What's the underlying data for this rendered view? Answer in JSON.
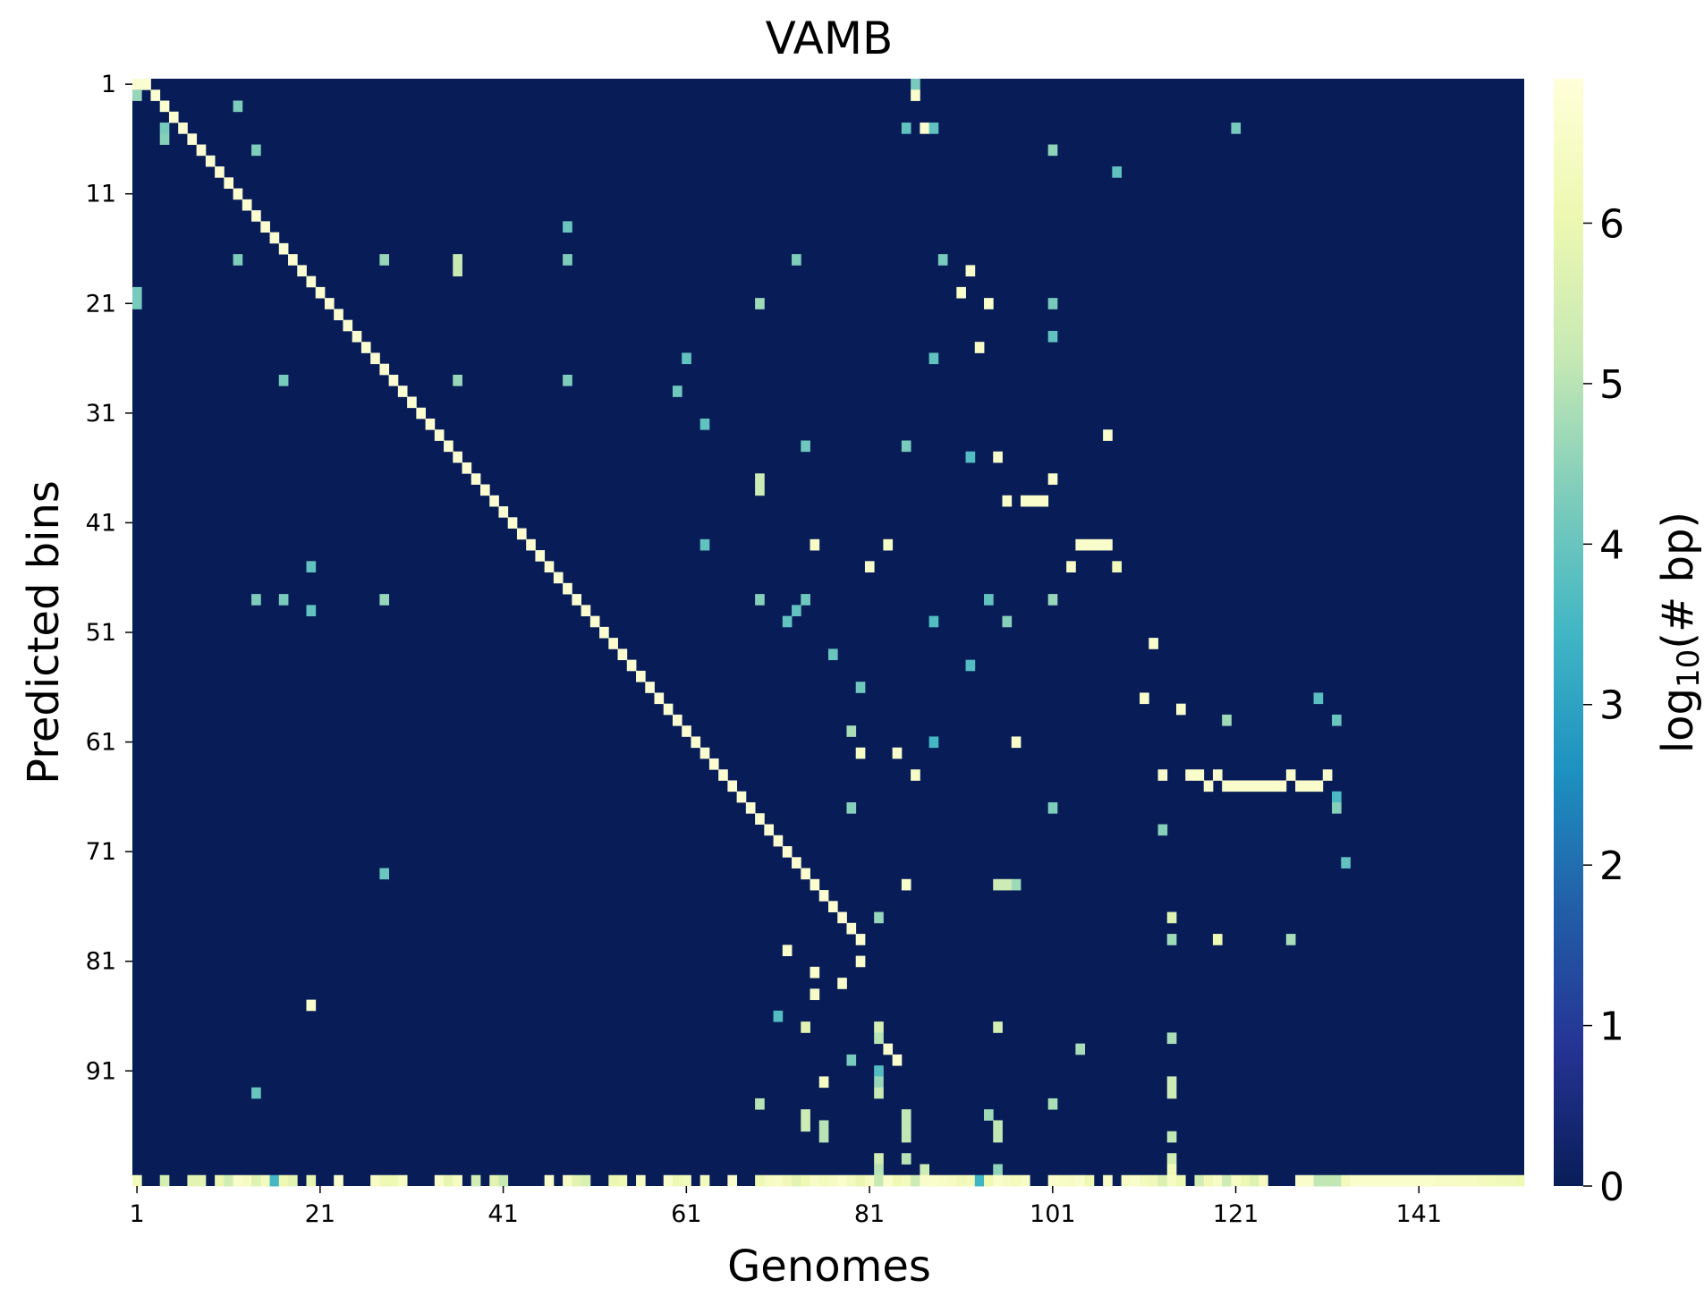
{
  "chart_data": {
    "type": "heatmap",
    "title": "VAMB",
    "xlabel": "Genomes",
    "ylabel": "Predicted bins",
    "colorbar": {
      "label_main": "log",
      "label_sub": "10",
      "label_rest": "(# bp)",
      "range": [
        0,
        6.9
      ],
      "ticks": [
        "0",
        "1",
        "2",
        "3",
        "4",
        "5",
        "6"
      ],
      "colormap": "YlGnBu_r"
    },
    "n_cols": 152,
    "n_rows": 101,
    "x_ticks": [
      "1",
      "21",
      "41",
      "61",
      "81",
      "101",
      "121",
      "141"
    ],
    "y_ticks": [
      "1",
      "11",
      "21",
      "31",
      "41",
      "51",
      "61",
      "71",
      "81",
      "91"
    ],
    "background_value": 0,
    "cells": [
      [
        1,
        1,
        6.7
      ],
      [
        2,
        1,
        6.7
      ],
      [
        3,
        2,
        6.7
      ],
      [
        4,
        3,
        6.7
      ],
      [
        4,
        5,
        4.2
      ],
      [
        4,
        6,
        4.4
      ],
      [
        5,
        4,
        6.7
      ],
      [
        6,
        5,
        6.7
      ],
      [
        7,
        6,
        6.7
      ],
      [
        8,
        7,
        6.7
      ],
      [
        9,
        8,
        6.7
      ],
      [
        10,
        9,
        6.7
      ],
      [
        11,
        10,
        6.7
      ],
      [
        12,
        11,
        6.7
      ],
      [
        13,
        12,
        6.7
      ],
      [
        14,
        13,
        6.7
      ],
      [
        15,
        14,
        6.7
      ],
      [
        16,
        15,
        6.7
      ],
      [
        17,
        16,
        6.7
      ],
      [
        18,
        17,
        6.7
      ],
      [
        19,
        18,
        6.7
      ],
      [
        20,
        19,
        6.7
      ],
      [
        21,
        20,
        6.7
      ],
      [
        22,
        21,
        6.7
      ],
      [
        23,
        22,
        6.7
      ],
      [
        24,
        23,
        6.7
      ],
      [
        25,
        24,
        6.7
      ],
      [
        26,
        25,
        6.7
      ],
      [
        27,
        26,
        6.7
      ],
      [
        28,
        27,
        6.7
      ],
      [
        29,
        28,
        6.7
      ],
      [
        30,
        29,
        6.7
      ],
      [
        31,
        30,
        6.7
      ],
      [
        32,
        31,
        6.7
      ],
      [
        33,
        32,
        6.7
      ],
      [
        34,
        33,
        6.7
      ],
      [
        35,
        34,
        6.7
      ],
      [
        36,
        35,
        6.7
      ],
      [
        37,
        36,
        6.7
      ],
      [
        38,
        37,
        6.7
      ],
      [
        39,
        38,
        6.7
      ],
      [
        40,
        39,
        6.7
      ],
      [
        41,
        40,
        6.7
      ],
      [
        42,
        41,
        6.7
      ],
      [
        43,
        42,
        6.7
      ],
      [
        44,
        43,
        6.7
      ],
      [
        45,
        44,
        6.7
      ],
      [
        46,
        45,
        6.7
      ],
      [
        47,
        46,
        6.7
      ],
      [
        48,
        47,
        6.7
      ],
      [
        49,
        48,
        6.7
      ],
      [
        50,
        49,
        6.7
      ],
      [
        51,
        50,
        6.7
      ],
      [
        52,
        51,
        6.7
      ],
      [
        53,
        52,
        6.7
      ],
      [
        54,
        53,
        6.7
      ],
      [
        55,
        54,
        6.7
      ],
      [
        56,
        55,
        6.7
      ],
      [
        57,
        56,
        6.7
      ],
      [
        58,
        57,
        6.7
      ],
      [
        59,
        58,
        6.7
      ],
      [
        60,
        59,
        6.7
      ],
      [
        61,
        60,
        6.7
      ],
      [
        62,
        61,
        6.7
      ],
      [
        63,
        62,
        6.7
      ],
      [
        64,
        63,
        6.7
      ],
      [
        65,
        64,
        6.7
      ],
      [
        66,
        65,
        6.7
      ],
      [
        67,
        66,
        6.7
      ],
      [
        68,
        67,
        6.7
      ],
      [
        69,
        68,
        6.7
      ],
      [
        70,
        69,
        6.7
      ],
      [
        71,
        70,
        6.7
      ],
      [
        72,
        71,
        6.7
      ],
      [
        73,
        72,
        6.7
      ],
      [
        74,
        73,
        6.7
      ],
      [
        75,
        74,
        6.7
      ],
      [
        76,
        75,
        6.7
      ],
      [
        77,
        76,
        6.7
      ],
      [
        78,
        77,
        6.7
      ],
      [
        79,
        78,
        6.7
      ],
      [
        80,
        79,
        6.7
      ],
      [
        1,
        2,
        4.6
      ],
      [
        1,
        20,
        4.2
      ],
      [
        1,
        21,
        4.2
      ],
      [
        12,
        3,
        4.3
      ],
      [
        14,
        7,
        4.3
      ],
      [
        12,
        17,
        4.3
      ],
      [
        17,
        28,
        4.2
      ],
      [
        20,
        45,
        3.9
      ],
      [
        20,
        49,
        3.9
      ],
      [
        14,
        48,
        4.3
      ],
      [
        17,
        48,
        4.2
      ],
      [
        28,
        17,
        4.6
      ],
      [
        28,
        48,
        4.6
      ],
      [
        28,
        73,
        4.0
      ],
      [
        36,
        17,
        5.2
      ],
      [
        36,
        18,
        5.2
      ],
      [
        36,
        28,
        4.6
      ],
      [
        48,
        14,
        4.0
      ],
      [
        48,
        17,
        4.3
      ],
      [
        48,
        28,
        4.3
      ],
      [
        20,
        85,
        6.6
      ],
      [
        14,
        93,
        4.0
      ],
      [
        61,
        26,
        3.9
      ],
      [
        60,
        29,
        4.1
      ],
      [
        63,
        32,
        3.9
      ],
      [
        63,
        43,
        3.9
      ],
      [
        69,
        21,
        4.7
      ],
      [
        69,
        37,
        5.3
      ],
      [
        69,
        38,
        5.3
      ],
      [
        69,
        48,
        4.4
      ],
      [
        69,
        94,
        5.0
      ],
      [
        73,
        17,
        4.3
      ],
      [
        74,
        34,
        4.1
      ],
      [
        75,
        43,
        6.5
      ],
      [
        72,
        50,
        3.9
      ],
      [
        73,
        49,
        3.9
      ],
      [
        74,
        48,
        4.1
      ],
      [
        77,
        53,
        4.0
      ],
      [
        80,
        56,
        4.1
      ],
      [
        79,
        60,
        4.8
      ],
      [
        80,
        62,
        6.5
      ],
      [
        79,
        67,
        4.4
      ],
      [
        81,
        45,
        6.6
      ],
      [
        83,
        43,
        6.5
      ],
      [
        86,
        1,
        4.2
      ],
      [
        86,
        2,
        6.6
      ],
      [
        85,
        5,
        3.9
      ],
      [
        87,
        5,
        6.7
      ],
      [
        88,
        5,
        3.9
      ],
      [
        89,
        17,
        4.2
      ],
      [
        88,
        26,
        3.9
      ],
      [
        85,
        34,
        4.2
      ],
      [
        88,
        50,
        3.7
      ],
      [
        88,
        61,
        3.5
      ],
      [
        84,
        62,
        6.6
      ],
      [
        86,
        64,
        6.5
      ],
      [
        85,
        74,
        6.6
      ],
      [
        82,
        77,
        4.6
      ],
      [
        72,
        80,
        6.6
      ],
      [
        80,
        81,
        6.6
      ],
      [
        75,
        82,
        6.6
      ],
      [
        78,
        83,
        6.6
      ],
      [
        75,
        84,
        6.5
      ],
      [
        71,
        86,
        3.7
      ],
      [
        74,
        87,
        5.8
      ],
      [
        82,
        87,
        5.5
      ],
      [
        82,
        88,
        5.0
      ],
      [
        83,
        89,
        6.6
      ],
      [
        84,
        90,
        6.6
      ],
      [
        79,
        90,
        4.2
      ],
      [
        82,
        91,
        3.7
      ],
      [
        76,
        92,
        6.4
      ],
      [
        82,
        92,
        4.6
      ],
      [
        82,
        93,
        5.2
      ],
      [
        92,
        18,
        6.6
      ],
      [
        91,
        20,
        6.6
      ],
      [
        94,
        21,
        6.6
      ],
      [
        93,
        25,
        6.5
      ],
      [
        92,
        35,
        3.7
      ],
      [
        95,
        35,
        6.6
      ],
      [
        96,
        39,
        6.6
      ],
      [
        98,
        39,
        6.6
      ],
      [
        99,
        39,
        6.6
      ],
      [
        100,
        39,
        6.6
      ],
      [
        94,
        48,
        3.9
      ],
      [
        96,
        50,
        4.4
      ],
      [
        92,
        54,
        3.7
      ],
      [
        97,
        61,
        6.6
      ],
      [
        95,
        74,
        5.3
      ],
      [
        96,
        74,
        5.3
      ],
      [
        97,
        74,
        4.7
      ],
      [
        95,
        87,
        5.5
      ],
      [
        94,
        95,
        4.7
      ],
      [
        95,
        96,
        5.1
      ],
      [
        95,
        97,
        5.1
      ],
      [
        95,
        100,
        4.5
      ],
      [
        101,
        7,
        4.5
      ],
      [
        108,
        9,
        3.9
      ],
      [
        101,
        21,
        4.2
      ],
      [
        101,
        24,
        3.9
      ],
      [
        107,
        33,
        6.6
      ],
      [
        101,
        37,
        6.6
      ],
      [
        104,
        43,
        6.6
      ],
      [
        105,
        43,
        6.6
      ],
      [
        106,
        43,
        6.6
      ],
      [
        107,
        43,
        6.6
      ],
      [
        103,
        45,
        6.5
      ],
      [
        108,
        45,
        6.2
      ],
      [
        101,
        48,
        4.6
      ],
      [
        101,
        67,
        4.3
      ],
      [
        104,
        89,
        4.8
      ],
      [
        101,
        94,
        4.8
      ],
      [
        112,
        52,
        6.6
      ],
      [
        111,
        57,
        6.6
      ],
      [
        115,
        58,
        6.6
      ],
      [
        113,
        64,
        6.6
      ],
      [
        116,
        64,
        6.6
      ],
      [
        117,
        64,
        6.6
      ],
      [
        118,
        65,
        6.6
      ],
      [
        119,
        64,
        6.6
      ],
      [
        120,
        65,
        6.6
      ],
      [
        113,
        69,
        4.4
      ],
      [
        114,
        77,
        5.7
      ],
      [
        114,
        79,
        4.7
      ],
      [
        114,
        88,
        4.8
      ],
      [
        114,
        92,
        5.3
      ],
      [
        114,
        93,
        5.3
      ],
      [
        114,
        97,
        5.1
      ],
      [
        114,
        99,
        5.4
      ],
      [
        119,
        79,
        6.1
      ],
      [
        120,
        59,
        4.7
      ],
      [
        121,
        5,
        4.2
      ],
      [
        121,
        65,
        6.6
      ],
      [
        122,
        65,
        6.6
      ],
      [
        123,
        65,
        6.6
      ],
      [
        124,
        65,
        6.6
      ],
      [
        125,
        65,
        6.6
      ],
      [
        126,
        65,
        6.6
      ],
      [
        127,
        64,
        6.6
      ],
      [
        128,
        65,
        6.6
      ],
      [
        129,
        65,
        6.6
      ],
      [
        130,
        65,
        6.6
      ],
      [
        131,
        64,
        6.6
      ],
      [
        127,
        79,
        4.8
      ],
      [
        130,
        57,
        3.8
      ],
      [
        132,
        59,
        4.0
      ],
      [
        132,
        66,
        3.6
      ],
      [
        132,
        67,
        4.4
      ],
      [
        133,
        72,
        3.9
      ],
      [
        114,
        100,
        6.2
      ],
      [
        76,
        97,
        5.0
      ],
      [
        76,
        96,
        5.0
      ],
      [
        74,
        96,
        5.3
      ],
      [
        74,
        95,
        5.3
      ],
      [
        85,
        95,
        5.1
      ],
      [
        85,
        96,
        5.1
      ],
      [
        85,
        97,
        5.1
      ],
      [
        82,
        99,
        5.4
      ],
      [
        85,
        99,
        5.0
      ],
      [
        87,
        100,
        5.3
      ],
      [
        82,
        100,
        5.0
      ],
      [
        1,
        101,
        6.3
      ],
      [
        4,
        101,
        5.5
      ],
      [
        7,
        101,
        5.8
      ],
      [
        8,
        101,
        5.8
      ],
      [
        10,
        101,
        6.0
      ],
      [
        11,
        101,
        5.4
      ],
      [
        12,
        101,
        6.6
      ],
      [
        13,
        101,
        6.4
      ],
      [
        14,
        101,
        5.7
      ],
      [
        15,
        101,
        6.3
      ],
      [
        16,
        101,
        3.5
      ],
      [
        17,
        101,
        6.1
      ],
      [
        18,
        101,
        5.8
      ],
      [
        20,
        101,
        5.9
      ],
      [
        23,
        101,
        6.6
      ],
      [
        27,
        101,
        6.5
      ],
      [
        28,
        101,
        6.1
      ],
      [
        29,
        101,
        6.1
      ],
      [
        30,
        101,
        6.4
      ],
      [
        34,
        101,
        6.6
      ],
      [
        35,
        101,
        5.9
      ],
      [
        36,
        101,
        6.4
      ],
      [
        38,
        101,
        5.4
      ],
      [
        40,
        101,
        5.8
      ],
      [
        41,
        101,
        5.2
      ],
      [
        46,
        101,
        6.6
      ],
      [
        48,
        101,
        6.5
      ],
      [
        49,
        101,
        5.8
      ],
      [
        50,
        101,
        5.6
      ],
      [
        53,
        101,
        6.0
      ],
      [
        54,
        101,
        6.1
      ],
      [
        56,
        101,
        6.4
      ],
      [
        59,
        101,
        6.6
      ],
      [
        60,
        101,
        6.1
      ],
      [
        61,
        101,
        6.3
      ],
      [
        63,
        101,
        6.3
      ],
      [
        66,
        101,
        6.6
      ],
      [
        69,
        101,
        6.1
      ],
      [
        70,
        101,
        6.4
      ],
      [
        71,
        101,
        6.5
      ],
      [
        72,
        101,
        6.2
      ],
      [
        73,
        101,
        5.8
      ],
      [
        74,
        101,
        6.1
      ],
      [
        75,
        101,
        6.5
      ],
      [
        76,
        101,
        6.3
      ],
      [
        77,
        101,
        6.4
      ],
      [
        78,
        101,
        6.6
      ],
      [
        79,
        101,
        6.3
      ],
      [
        80,
        101,
        6.0
      ],
      [
        81,
        101,
        6.4
      ],
      [
        82,
        101,
        5.2
      ],
      [
        83,
        101,
        6.6
      ],
      [
        84,
        101,
        6.1
      ],
      [
        85,
        101,
        6.3
      ],
      [
        86,
        101,
        5.3
      ],
      [
        87,
        101,
        6.6
      ],
      [
        88,
        101,
        6.6
      ],
      [
        89,
        101,
        6.5
      ],
      [
        90,
        101,
        6.4
      ],
      [
        91,
        101,
        6.2
      ],
      [
        92,
        101,
        6.3
      ],
      [
        93,
        101,
        3.4
      ],
      [
        94,
        101,
        6.1
      ],
      [
        95,
        101,
        6.6
      ],
      [
        96,
        101,
        6.4
      ],
      [
        97,
        101,
        6.3
      ],
      [
        98,
        101,
        6.5
      ],
      [
        101,
        101,
        6.6
      ],
      [
        102,
        101,
        6.5
      ],
      [
        103,
        101,
        6.4
      ],
      [
        104,
        101,
        6.6
      ],
      [
        105,
        101,
        6.1
      ],
      [
        107,
        101,
        6.5
      ],
      [
        109,
        101,
        6.5
      ],
      [
        110,
        101,
        6.6
      ],
      [
        111,
        101,
        6.3
      ],
      [
        112,
        101,
        6.2
      ],
      [
        113,
        101,
        5.6
      ],
      [
        114,
        101,
        6.4
      ],
      [
        115,
        101,
        6.1
      ],
      [
        117,
        101,
        5.4
      ],
      [
        118,
        101,
        6.2
      ],
      [
        119,
        101,
        6.5
      ],
      [
        120,
        101,
        5.3
      ],
      [
        121,
        101,
        6.5
      ],
      [
        122,
        101,
        6.1
      ],
      [
        123,
        101,
        5.7
      ],
      [
        124,
        101,
        6.4
      ],
      [
        128,
        101,
        6.6
      ],
      [
        129,
        101,
        6.6
      ],
      [
        130,
        101,
        5.1
      ],
      [
        131,
        101,
        5.1
      ],
      [
        132,
        101,
        5.1
      ],
      [
        133,
        101,
        6.3
      ],
      [
        134,
        101,
        6.6
      ],
      [
        135,
        101,
        6.6
      ],
      [
        136,
        101,
        6.6
      ],
      [
        137,
        101,
        6.6
      ],
      [
        138,
        101,
        6.6
      ],
      [
        139,
        101,
        6.6
      ],
      [
        140,
        101,
        6.6
      ],
      [
        141,
        101,
        6.6
      ],
      [
        142,
        101,
        6.6
      ],
      [
        143,
        101,
        6.5
      ],
      [
        144,
        101,
        6.5
      ],
      [
        145,
        101,
        6.5
      ],
      [
        146,
        101,
        6.4
      ],
      [
        147,
        101,
        6.4
      ],
      [
        148,
        101,
        6.3
      ],
      [
        149,
        101,
        6.3
      ],
      [
        150,
        101,
        6.2
      ],
      [
        151,
        101,
        6.2
      ],
      [
        152,
        101,
        6.1
      ]
    ]
  }
}
